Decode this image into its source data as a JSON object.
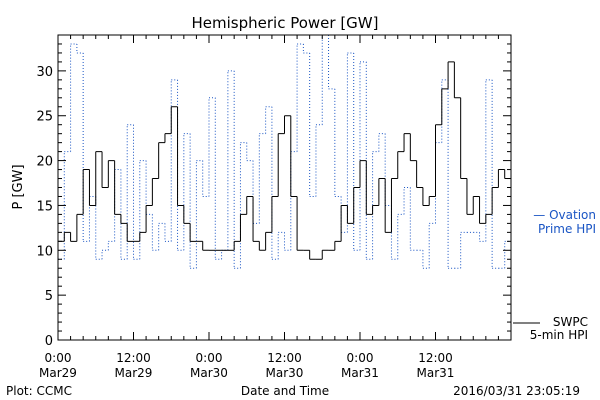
{
  "chart_data": {
    "type": "line",
    "title": "Hemispheric Power [GW]",
    "ylabel": "P [GW]",
    "xlabel": "Date and Time",
    "ylim": [
      0,
      34
    ],
    "yticks": [
      0,
      5,
      10,
      15,
      20,
      25,
      30
    ],
    "xlim": [
      "2016-03-29T00:00",
      "2016-04-01T00:00"
    ],
    "xticks": [
      {
        "at": "2016-03-29T00:00",
        "time": "0:00",
        "date": "Mar29"
      },
      {
        "at": "2016-03-29T12:00",
        "time": "12:00",
        "date": "Mar29"
      },
      {
        "at": "2016-03-30T00:00",
        "time": "0:00",
        "date": "Mar30"
      },
      {
        "at": "2016-03-30T12:00",
        "time": "12:00",
        "date": "Mar30"
      },
      {
        "at": "2016-03-31T00:00",
        "time": "0:00",
        "date": "Mar31"
      },
      {
        "at": "2016-03-31T12:00",
        "time": "12:00",
        "date": "Mar31"
      }
    ],
    "grid": false,
    "series": [
      {
        "name": "SWPC 5-min HPI",
        "legend_lines": [
          "SWPC",
          "5-min HPI"
        ],
        "color": "#000000",
        "style": "solid",
        "x_hours": [
          0,
          1,
          2,
          3,
          4,
          5,
          6,
          7,
          8,
          9,
          10,
          11,
          12,
          13,
          14,
          15,
          16,
          17,
          18,
          19,
          20,
          21,
          22,
          23,
          24,
          25,
          26,
          27,
          28,
          29,
          30,
          31,
          32,
          33,
          34,
          35,
          36,
          37,
          38,
          39,
          40,
          41,
          42,
          43,
          44,
          45,
          46,
          47,
          48,
          49,
          50,
          51,
          52,
          53,
          54,
          55,
          56,
          57,
          58,
          59,
          60,
          61,
          62,
          63,
          64,
          65,
          66,
          67,
          68,
          69,
          70,
          71
        ],
        "values": [
          11,
          12,
          11,
          14,
          19,
          15,
          21,
          17,
          20,
          14,
          13,
          11,
          11,
          12,
          15,
          18,
          22,
          23,
          26,
          15,
          13,
          11,
          11,
          10,
          10,
          10,
          10,
          10,
          11,
          14,
          16,
          11,
          10,
          12,
          16,
          23,
          25,
          16,
          10,
          10,
          9,
          9,
          10,
          10,
          11,
          15,
          13,
          17,
          20,
          14,
          15,
          18,
          12,
          18,
          21,
          23,
          20,
          17,
          15,
          16,
          24,
          28,
          31,
          27,
          18,
          14,
          16,
          13,
          14,
          17,
          19,
          18
        ]
      },
      {
        "name": "Ovation Prime HPI",
        "legend_lines": [
          "— Ovation",
          "Prime HPI"
        ],
        "color": "#1a55c4",
        "style": "dotted",
        "x_hours": [
          0,
          1,
          2,
          3,
          4,
          5,
          6,
          7,
          8,
          9,
          10,
          11,
          12,
          13,
          14,
          15,
          16,
          17,
          18,
          19,
          20,
          21,
          22,
          23,
          24,
          25,
          26,
          27,
          28,
          29,
          30,
          31,
          32,
          33,
          34,
          35,
          36,
          37,
          38,
          39,
          40,
          41,
          42,
          43,
          44,
          45,
          46,
          47,
          48,
          49,
          50,
          51,
          52,
          53,
          54,
          55,
          56,
          57,
          58,
          59,
          60,
          61,
          62,
          63,
          64,
          65,
          66,
          67,
          68,
          69,
          70,
          71
        ],
        "values": [
          9,
          21,
          33,
          32,
          11,
          16,
          9,
          10,
          11,
          19,
          9,
          24,
          9,
          20,
          14,
          10,
          13,
          11,
          29,
          10,
          23,
          8,
          20,
          16,
          27,
          9,
          10,
          30,
          8,
          22,
          20,
          13,
          23,
          26,
          9,
          12,
          10,
          21,
          33,
          32,
          16,
          24,
          34,
          28,
          16,
          12,
          32,
          10,
          31,
          9,
          21,
          23,
          15,
          9,
          14,
          17,
          10,
          10,
          8,
          13,
          22,
          29,
          8,
          8,
          12,
          12,
          12,
          11,
          29,
          8,
          8,
          11
        ]
      }
    ]
  },
  "footer": {
    "left": "Plot: CCMC",
    "right": "2016/03/31 23:05:19"
  }
}
